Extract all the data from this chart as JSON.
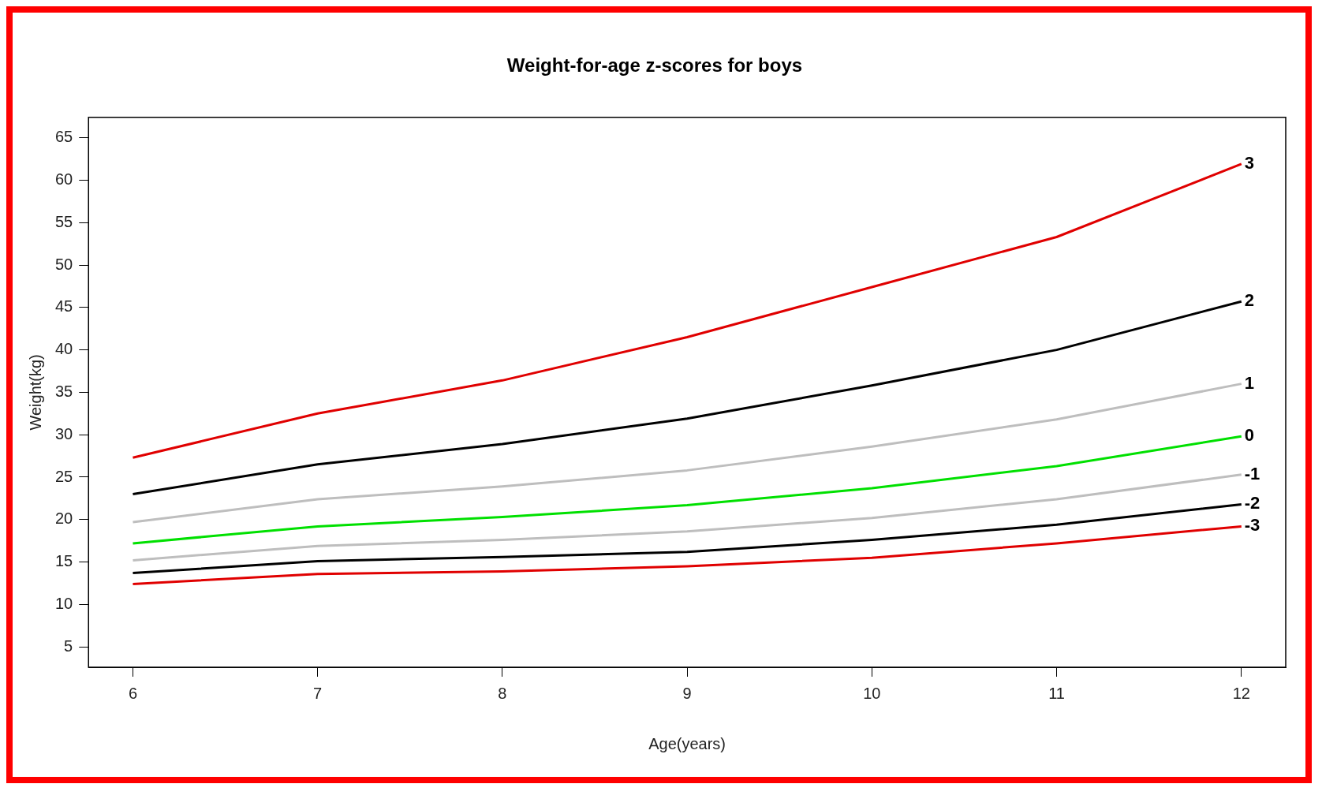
{
  "chart_data": {
    "type": "line",
    "title": "Weight-for-age z-scores for boys",
    "xlabel": "Age(years)",
    "ylabel": "Weight(kg)",
    "x": [
      6,
      7,
      8,
      9,
      10,
      11,
      12
    ],
    "xlim": [
      5.76,
      12.24
    ],
    "xticks": [
      6,
      7,
      8,
      9,
      10,
      11,
      12
    ],
    "ylim": [
      2.6,
      67.4
    ],
    "yticks": [
      5,
      10,
      15,
      20,
      25,
      30,
      35,
      40,
      45,
      50,
      55,
      60,
      65
    ],
    "grid": false,
    "legend": false,
    "marker": "none",
    "line_style": "solid",
    "series": [
      {
        "name": "3",
        "color": "#e00000",
        "values": [
          27.3,
          32.5,
          36.4,
          41.5,
          47.4,
          53.3,
          61.9
        ]
      },
      {
        "name": "2",
        "color": "#000000",
        "values": [
          23.0,
          26.5,
          28.9,
          31.9,
          35.8,
          40.0,
          45.7
        ]
      },
      {
        "name": "1",
        "color": "#bebebe",
        "values": [
          19.7,
          22.4,
          23.9,
          25.8,
          28.6,
          31.8,
          36.0
        ]
      },
      {
        "name": "0",
        "color": "#00e000",
        "values": [
          17.2,
          19.2,
          20.3,
          21.7,
          23.7,
          26.3,
          29.8
        ]
      },
      {
        "name": "-1",
        "color": "#bebebe",
        "values": [
          15.2,
          16.9,
          17.6,
          18.6,
          20.2,
          22.4,
          25.3
        ]
      },
      {
        "name": "-2",
        "color": "#000000",
        "values": [
          13.7,
          15.1,
          15.6,
          16.2,
          17.6,
          19.4,
          21.8
        ]
      },
      {
        "name": "-3",
        "color": "#e00000",
        "values": [
          12.4,
          13.6,
          13.9,
          14.5,
          15.5,
          17.2,
          19.2
        ]
      }
    ]
  }
}
